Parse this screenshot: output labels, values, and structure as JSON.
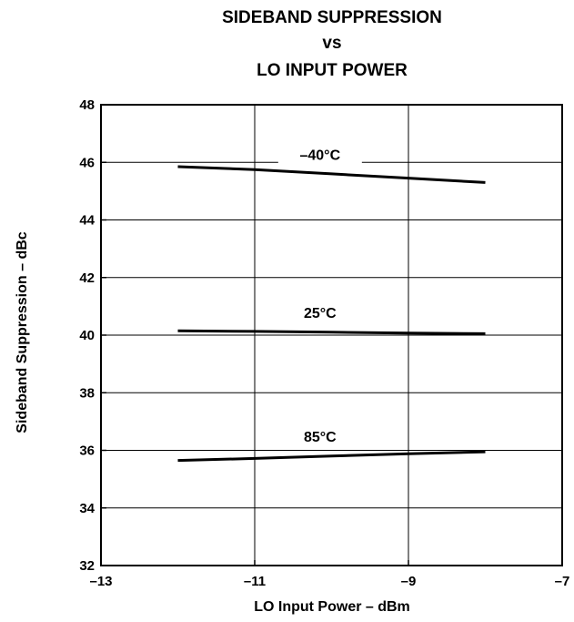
{
  "chart_data": {
    "type": "line",
    "title_lines": [
      "SIDEBAND SUPPRESSION",
      "vs",
      "LO INPUT POWER"
    ],
    "xlabel": "LO Input Power – dBm",
    "ylabel": "Sideband Suppression – dBc",
    "xlim": [
      -13,
      -7
    ],
    "ylim": [
      32,
      48
    ],
    "x_ticks": [
      -13,
      -11,
      -9,
      -7
    ],
    "x_tick_labels": [
      "–13",
      "–11",
      "–9",
      "–7"
    ],
    "y_ticks": [
      32,
      34,
      36,
      38,
      40,
      42,
      44,
      46,
      48
    ],
    "y_tick_labels": [
      "32",
      "34",
      "36",
      "38",
      "40",
      "42",
      "44",
      "46",
      "48"
    ],
    "grid": true,
    "legend": "inline labels above each line",
    "series": [
      {
        "name": "–40°C",
        "points": [
          [
            -12,
            45.85
          ],
          [
            -11,
            45.75
          ],
          [
            -10,
            45.6
          ],
          [
            -9,
            45.45
          ],
          [
            -8,
            45.3
          ]
        ]
      },
      {
        "name": "25°C",
        "points": [
          [
            -12,
            40.15
          ],
          [
            -11,
            40.13
          ],
          [
            -10,
            40.1
          ],
          [
            -9,
            40.07
          ],
          [
            -8,
            40.05
          ]
        ]
      },
      {
        "name": "85°C",
        "points": [
          [
            -12,
            35.65
          ],
          [
            -11,
            35.72
          ],
          [
            -10,
            35.8
          ],
          [
            -9,
            35.88
          ],
          [
            -8,
            35.95
          ]
        ]
      }
    ],
    "colors": {
      "line": "#000000",
      "grid": "#000000",
      "background": "#ffffff"
    }
  }
}
